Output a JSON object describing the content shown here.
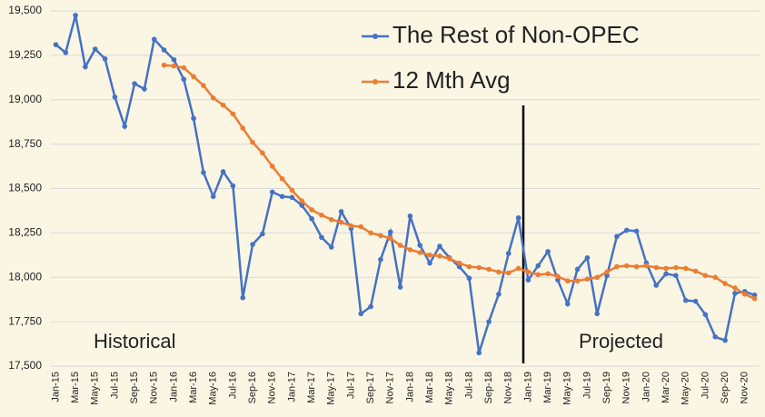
{
  "chart_data": {
    "type": "line",
    "categories": [
      "Jan-15",
      null,
      "Mar-15",
      null,
      "May-15",
      null,
      "Jul-15",
      null,
      "Sep-15",
      null,
      "Nov-15",
      null,
      "Jan-16",
      null,
      "Mar-16",
      null,
      "May-16",
      null,
      "Jul-16",
      null,
      "Sep-16",
      null,
      "Nov-16",
      null,
      "Jan-17",
      null,
      "Mar-17",
      null,
      "May-17",
      null,
      "Jul-17",
      null,
      "Sep-17",
      null,
      "Nov-17",
      null,
      "Jan-18",
      null,
      "Mar-18",
      null,
      "May-18",
      null,
      "Jul-18",
      null,
      "Sep-18",
      null,
      "Nov-18",
      null,
      "Jan-19",
      null,
      "Mar-19",
      null,
      "May-19",
      null,
      "Jul-19",
      null,
      "Sep-19",
      null,
      "Nov-19",
      null,
      "Jan-20",
      null,
      "Mar-20",
      null,
      "May-20",
      null,
      "Jul-20",
      null,
      "Sep-20",
      null,
      "Nov-20",
      null
    ],
    "series": [
      {
        "name": "The Rest of Non-OPEC",
        "color": "#4472c4",
        "values": [
          19310,
          19265,
          19475,
          19185,
          19285,
          19230,
          19015,
          18850,
          19090,
          19060,
          19340,
          19280,
          19225,
          19115,
          18895,
          18590,
          18455,
          18595,
          18515,
          17885,
          18185,
          18245,
          18480,
          18455,
          18450,
          18405,
          18330,
          18225,
          18170,
          18370,
          18275,
          17795,
          17835,
          18100,
          18255,
          17945,
          18345,
          18180,
          18080,
          18175,
          18110,
          18060,
          17995,
          17575,
          17750,
          17905,
          18135,
          18335,
          17985,
          18065,
          18145,
          17985,
          17850,
          18045,
          18110,
          17795,
          18010,
          18230,
          18265,
          18260,
          18080,
          17955,
          18020,
          18010,
          17870,
          17865,
          17790,
          17665,
          17645,
          17910,
          17920,
          17900
        ]
      },
      {
        "name": "12 Mth Avg",
        "color": "#ed7d31",
        "values": [
          null,
          null,
          null,
          null,
          null,
          null,
          null,
          null,
          null,
          null,
          null,
          19195,
          19190,
          19180,
          19130,
          19080,
          19010,
          18970,
          18920,
          18840,
          18760,
          18700,
          18625,
          18555,
          18490,
          18430,
          18380,
          18350,
          18325,
          18310,
          18290,
          18285,
          18250,
          18235,
          18220,
          18180,
          18155,
          18140,
          18125,
          18120,
          18105,
          18080,
          18060,
          18055,
          18045,
          18030,
          18025,
          18050,
          18030,
          18015,
          18020,
          18005,
          17980,
          17980,
          17990,
          18000,
          18030,
          18060,
          18065,
          18060,
          18065,
          18055,
          18050,
          18055,
          18050,
          18035,
          18010,
          18000,
          17965,
          17940,
          17905,
          17880
        ]
      }
    ],
    "ylim": [
      17500,
      19500
    ],
    "yticks": [
      {
        "value": 17500,
        "label": "17,500"
      },
      {
        "value": 17750,
        "label": "17,750"
      },
      {
        "value": 18000,
        "label": "18,000"
      },
      {
        "value": 18250,
        "label": "18,250"
      },
      {
        "value": 18500,
        "label": "18,500"
      },
      {
        "value": 18750,
        "label": "18,750"
      },
      {
        "value": 19000,
        "label": "19,000"
      },
      {
        "value": 19250,
        "label": "19,250"
      },
      {
        "value": 19500,
        "label": "19,500"
      }
    ],
    "grid": true,
    "legend": "upper right",
    "annotations": [
      "Historical",
      "Projected"
    ]
  }
}
